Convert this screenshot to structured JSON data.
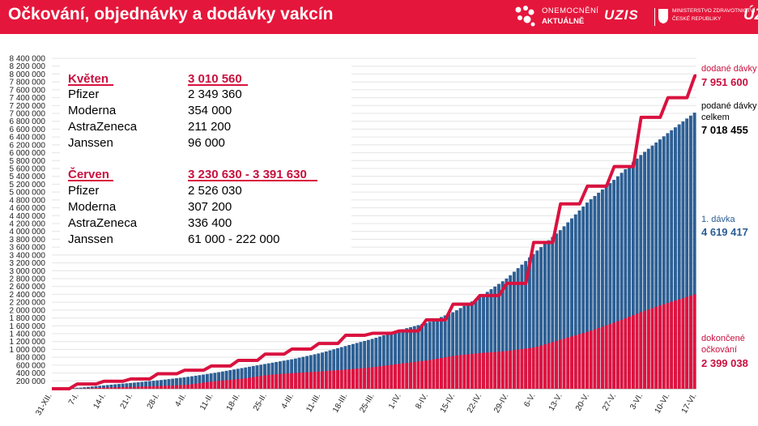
{
  "header": {
    "title": "Očkování, objednávky a dodávky vakcín",
    "logo1_line1": "ONEMOCNĚNÍ",
    "logo1_line2": "AKTUÁLNĚ",
    "logo2_text": "UZIS",
    "logo3_line1": "MINISTERSTVO ZDRAVOTNICTVÍ",
    "logo3_line2": "ČESKÉ REPUBLIKY",
    "logo4_text": "ÚZ"
  },
  "colors": {
    "header": "#e5163b",
    "delivered": "#d9123f",
    "first_dose": "#2d5f94",
    "completed": "#e0123e",
    "accent_text": "#c8103e",
    "blue_text": "#2b5d93"
  },
  "info_box": {
    "groups": [
      {
        "title": "Květen",
        "total": "3 010 560",
        "rows": [
          {
            "name": "Pfizer",
            "value": "2 349 360"
          },
          {
            "name": "Moderna",
            "value": "354 000"
          },
          {
            "name": "AstraZeneca",
            "value": "211 200"
          },
          {
            "name": "Janssen",
            "value": "96 000"
          }
        ]
      },
      {
        "title": "Červen",
        "total": "3 230 630 - 3 391 630",
        "rows": [
          {
            "name": "Pfizer",
            "value": "2 526 030"
          },
          {
            "name": "Moderna",
            "value": "307 200"
          },
          {
            "name": "AstraZeneca",
            "value": "336 400"
          },
          {
            "name": "Janssen",
            "value": "61 000 - 222 000"
          }
        ]
      }
    ]
  },
  "annotations": {
    "delivered_label": "dodané dávky",
    "delivered_value": "7 951 600",
    "total_label_1": "podané dávky",
    "total_label_2": "celkem",
    "total_value": "7 018 455",
    "first_label": "1. dávka",
    "first_value": "4 619 417",
    "completed_label_1": "dokončené",
    "completed_label_2": "očkování",
    "completed_value": "2 399 038"
  },
  "chart_data": {
    "type": "bar",
    "ylim": [
      0,
      8400000
    ],
    "y_ticks": [
      "200 000",
      "400 000",
      "600 000",
      "800 000",
      "1 000 000",
      "1 200 000",
      "1 400 000",
      "1 600 000",
      "1 800 000",
      "2 000 000",
      "2 200 000",
      "2 400 000",
      "2 600 000",
      "2 800 000",
      "3 000 000",
      "3 200 000",
      "3 400 000",
      "3 600 000",
      "3 800 000",
      "4 000 000",
      "4 200 000",
      "4 400 000",
      "4 600 000",
      "4 800 000",
      "5 000 000",
      "5 200 000",
      "5 400 000",
      "5 600 000",
      "5 800 000",
      "6 000 000",
      "6 200 000",
      "6 400 000",
      "6 600 000",
      "6 800 000",
      "7 000 000",
      "7 200 000",
      "7 400 000",
      "7 600 000",
      "7 800 000",
      "8 000 000",
      "8 200 000",
      "8 400 000"
    ],
    "x_ticks": [
      "31-XII.",
      "7-I.",
      "14-I.",
      "21-I.",
      "28-I.",
      "4-II.",
      "11-II.",
      "18-II.",
      "25-II.",
      "4-III.",
      "11-III.",
      "18-III.",
      "25-III.",
      "1-IV.",
      "8-IV.",
      "15-IV.",
      "22-IV.",
      "29-IV.",
      "6-V.",
      "13-V.",
      "20-V.",
      "27-V.",
      "3-VI.",
      "10-VI.",
      "17-VI."
    ],
    "series": [
      {
        "name": "dodané dávky",
        "kind": "step-line",
        "values": [
          0,
          120000,
          190000,
          250000,
          380000,
          470000,
          580000,
          720000,
          880000,
          1010000,
          1150000,
          1360000,
          1410000,
          1470000,
          1750000,
          2150000,
          2370000,
          2680000,
          3720000,
          4700000,
          5150000,
          5650000,
          6900000,
          7400000,
          7951600
        ]
      },
      {
        "name": "podané dávky celkem",
        "kind": "bars",
        "values": [
          2000,
          28000,
          95000,
          155000,
          220000,
          300000,
          400000,
          520000,
          640000,
          760000,
          910000,
          1100000,
          1280000,
          1500000,
          1680000,
          1960000,
          2350000,
          2820000,
          3450000,
          4050000,
          4750000,
          5320000,
          5950000,
          6500000,
          7018455
        ]
      },
      {
        "name": "1. dávka",
        "kind": "bars",
        "values": [
          1000,
          12000,
          50000,
          95000,
          130000,
          175000,
          210000,
          250000,
          290000,
          350000,
          400000,
          450000,
          560000,
          650000,
          730000,
          800000,
          900000,
          1050000,
          1300000,
          1600000,
          1850000,
          2100000,
          2700000,
          3600000,
          4619417
        ]
      },
      {
        "name": "dokončené očkování",
        "kind": "bars",
        "values": [
          0,
          5000,
          30000,
          50000,
          70000,
          100000,
          190000,
          250000,
          350000,
          400000,
          440000,
          490000,
          550000,
          640000,
          720000,
          840000,
          910000,
          960000,
          1050000,
          1250000,
          1450000,
          1680000,
          1950000,
          2180000,
          2399038
        ]
      }
    ]
  }
}
